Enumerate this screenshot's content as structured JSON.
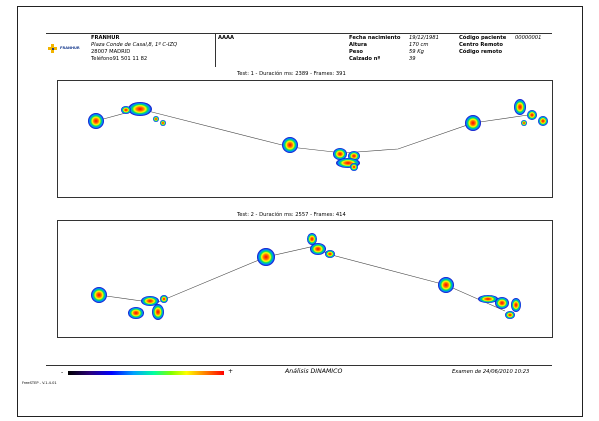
{
  "header": {
    "logo_text": "FRANHUR",
    "clinic": {
      "name": "FRANHUR",
      "address": "Plaza Conde de Casal,8, 1º C-IZQ",
      "city": "28007 MADRID",
      "phone": "Teléfono91 501 11 82"
    },
    "patient_name": "AAAA",
    "fields": [
      {
        "label": "Fecha nacimiento",
        "value": "19/12/1981"
      },
      {
        "label": "Altura",
        "value": "170 cm"
      },
      {
        "label": "Peso",
        "value": "59 Kg"
      },
      {
        "label": "Calzado nº",
        "value": "39"
      }
    ],
    "codes": [
      {
        "label": "Código paciente",
        "value": "00000001"
      },
      {
        "label": "Centro Remoto",
        "value": ""
      },
      {
        "label": "Código remoto",
        "value": ""
      }
    ]
  },
  "tests": [
    {
      "title": "Test: 1 - Duración ms: 2389 - Frames: 391"
    },
    {
      "title": "Test: 2 - Duración ms: 2557 - Frames: 414"
    }
  ],
  "footer": {
    "scale_min": "-",
    "scale_max": "+",
    "analysis": "Análisis DINAMICO",
    "exam": "Examen de 24/06/2010 10:23",
    "version": "FreeSTEP - V.1.4.01"
  },
  "colors": {
    "border": "#222222",
    "path_line": "#444444",
    "scale": [
      "#000000",
      "#2a007a",
      "#0000ff",
      "#00a0ff",
      "#00ffa0",
      "#80ff00",
      "#ffff00",
      "#ff8000",
      "#ff0000"
    ]
  }
}
